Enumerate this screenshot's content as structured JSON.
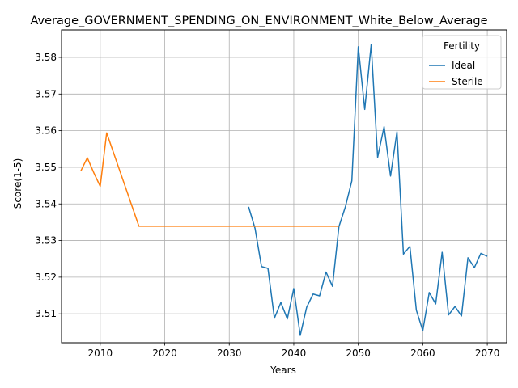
{
  "chart_data": {
    "type": "line",
    "title": "Average_GOVERNMENT_SPENDING_ON_ENVIRONMENT_White_Below_Average",
    "xlabel": "Years",
    "ylabel": "Score(1-5)",
    "xlim": [
      2004,
      2073
    ],
    "ylim": [
      3.5021,
      3.5875
    ],
    "xticks": [
      2010,
      2020,
      2030,
      2040,
      2050,
      2060,
      2070
    ],
    "yticks": [
      3.51,
      3.52,
      3.53,
      3.54,
      3.55,
      3.56,
      3.57,
      3.58
    ],
    "ytick_labels": [
      "3.51",
      "3.52",
      "3.53",
      "3.54",
      "3.55",
      "3.56",
      "3.57",
      "3.58"
    ],
    "grid": true,
    "legend": {
      "title": "Fertility",
      "placement": "top-right"
    },
    "series": [
      {
        "name": "Ideal",
        "color": "#1f77b4",
        "x": [
          2033,
          2034,
          2035,
          2036,
          2037,
          2038,
          2039,
          2040,
          2041,
          2042,
          2043,
          2044,
          2045,
          2046,
          2047,
          2048,
          2049,
          2050,
          2051,
          2052,
          2053,
          2054,
          2055,
          2056,
          2057,
          2058,
          2059,
          2060,
          2061,
          2062,
          2063,
          2064,
          2065,
          2066,
          2067,
          2068,
          2069,
          2070
        ],
        "y": [
          3.5392,
          3.5333,
          3.5229,
          3.5224,
          3.5088,
          3.5131,
          3.5086,
          3.5169,
          3.5041,
          3.5118,
          3.5154,
          3.5149,
          3.5214,
          3.5175,
          3.5338,
          3.5392,
          3.5463,
          3.5829,
          3.5658,
          3.5835,
          3.5527,
          3.5611,
          3.5476,
          3.5597,
          3.5263,
          3.5284,
          3.511,
          3.5054,
          3.5158,
          3.5127,
          3.5268,
          3.5097,
          3.512,
          3.5094,
          3.5253,
          3.5226,
          3.5265,
          3.5257
        ]
      },
      {
        "name": "Sterile",
        "color": "#ff7f0e",
        "x": [
          2007,
          2008,
          2009,
          2010,
          2011,
          2012,
          2013,
          2014,
          2015,
          2016,
          2017,
          2018,
          2019,
          2020,
          2021,
          2022,
          2023,
          2024,
          2025,
          2026,
          2027,
          2028,
          2029,
          2030,
          2031,
          2032,
          2033,
          2034,
          2035,
          2036,
          2037,
          2038,
          2039,
          2040,
          2041,
          2042,
          2043,
          2044,
          2045,
          2046,
          2047
        ],
        "y": [
          3.549,
          3.5526,
          3.5485,
          3.5448,
          3.5594,
          3.5543,
          3.5492,
          3.5441,
          3.539,
          3.5339,
          3.5339,
          3.5339,
          3.5339,
          3.5339,
          3.5339,
          3.5339,
          3.5339,
          3.5339,
          3.5339,
          3.5339,
          3.5339,
          3.5339,
          3.5339,
          3.5339,
          3.5339,
          3.5339,
          3.5339,
          3.5339,
          3.5339,
          3.5339,
          3.5339,
          3.5339,
          3.5339,
          3.5339,
          3.5339,
          3.5339,
          3.5339,
          3.5339,
          3.5339,
          3.5339,
          3.5339
        ]
      }
    ]
  }
}
